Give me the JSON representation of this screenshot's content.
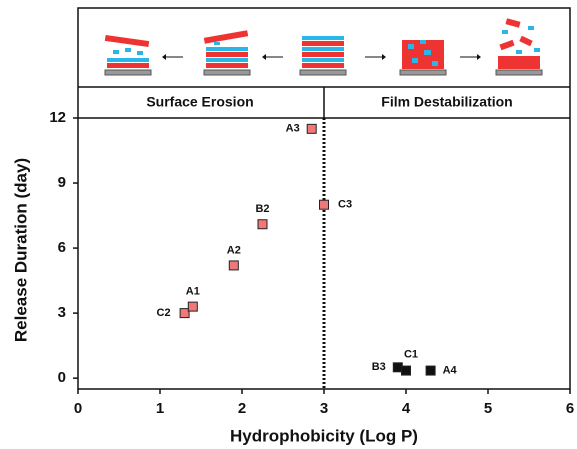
{
  "chart_data": {
    "type": "scatter",
    "x_label": "Hydrophobicity (Log P)",
    "y_label": "Release Duration (day)",
    "regions": [
      "Surface Erosion",
      "Film Destabilization"
    ],
    "divider_x": 3,
    "xlim": [
      0,
      6
    ],
    "xticks": [
      0,
      1,
      2,
      3,
      4,
      5,
      6
    ],
    "ylim": [
      -0.5,
      12
    ],
    "yticks": [
      0,
      3,
      6,
      9,
      12
    ],
    "series": [
      {
        "color": "#f07878",
        "x": [
          1.3,
          1.4,
          1.9,
          2.25,
          2.85,
          3.0
        ],
        "values": [
          3.0,
          3.3,
          5.2,
          7.1,
          11.5,
          8.0
        ],
        "labels": [
          "C2",
          "A1",
          "A2",
          "B2",
          "A3",
          "C3"
        ]
      },
      {
        "color": "#111111",
        "x": [
          3.9,
          4.0,
          4.3
        ],
        "values": [
          0.5,
          0.35,
          0.35
        ],
        "labels": [
          "B3",
          "C1",
          "A4"
        ]
      }
    ]
  }
}
